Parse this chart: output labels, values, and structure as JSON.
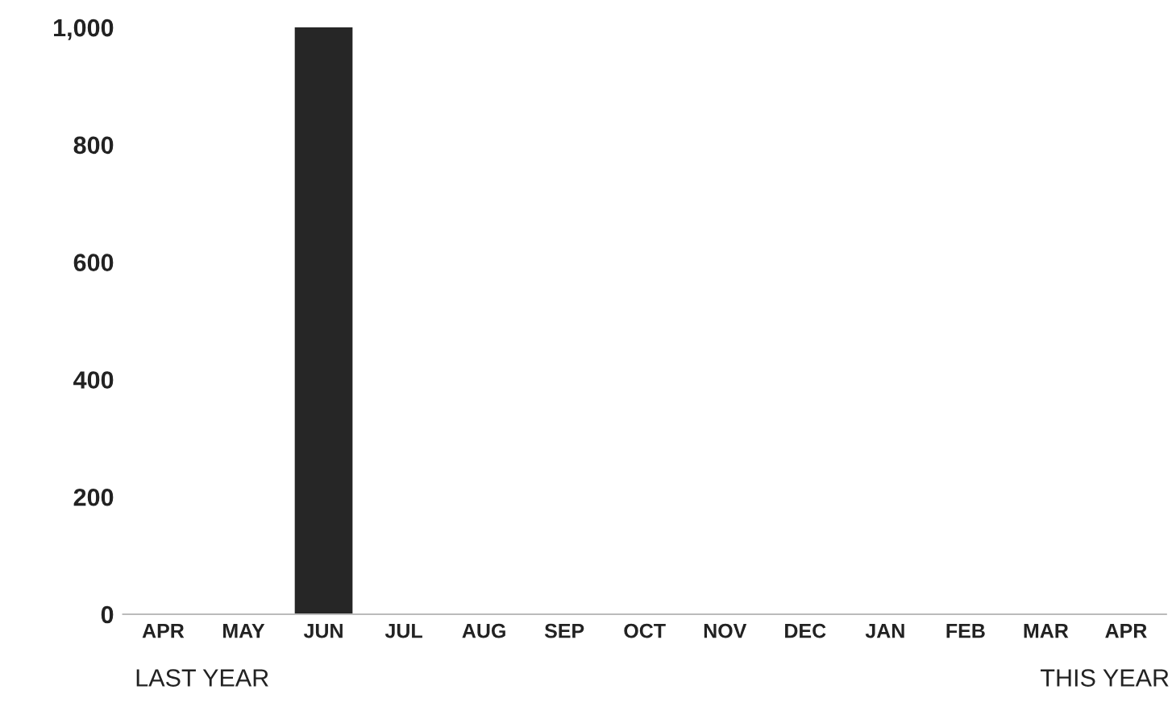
{
  "chart_data": {
    "type": "bar",
    "categories": [
      "APR",
      "MAY",
      "JUN",
      "JUL",
      "AUG",
      "SEP",
      "OCT",
      "NOV",
      "DEC",
      "JAN",
      "FEB",
      "MAR",
      "APR"
    ],
    "values": [
      0,
      0,
      1000,
      0,
      0,
      0,
      0,
      0,
      0,
      0,
      0,
      0,
      0
    ],
    "color": "#262626",
    "ylim": [
      0,
      1000
    ],
    "yticks": [
      0,
      200,
      400,
      600,
      800,
      {
        "value": 1000,
        "label": "1,000"
      }
    ],
    "grid": false,
    "annotations": [
      "LAST YEAR",
      "THIS YEAR"
    ]
  }
}
